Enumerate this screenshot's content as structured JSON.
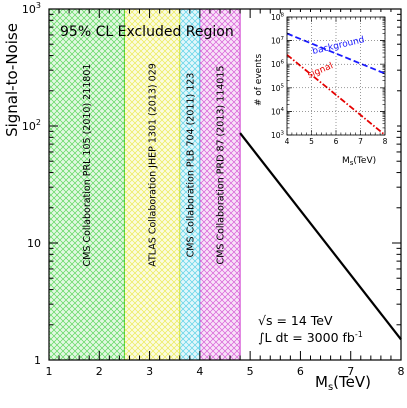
{
  "chart_data": [
    {
      "type": "line",
      "xlabel": "M",
      "xlabel_sub": "s",
      "xlabel_unit": "(TeV)",
      "ylabel": "Signal-to-Noise",
      "xlim": [
        1,
        8
      ],
      "ylim": [
        1,
        1000
      ],
      "yscale": "log",
      "x_ticks": [
        "1",
        "2",
        "3",
        "4",
        "5",
        "6",
        "7",
        "8"
      ],
      "y_ticks": [
        {
          "base": "1",
          "exp": ""
        },
        {
          "base": "10",
          "exp": ""
        },
        {
          "base": "10",
          "exp": "2"
        },
        {
          "base": "10",
          "exp": "3"
        }
      ],
      "region_title": "95% CL Excluded Region",
      "excluded_bands": [
        {
          "from": 1.0,
          "to": 2.5,
          "color": "#33cc33",
          "label": "CMS Collaboration PRL 105 (2010) 211801"
        },
        {
          "from": 2.5,
          "to": 3.6,
          "color": "#e5e52a",
          "label": "ATLAS Collaboration JHEP 1301 (2013) 029"
        },
        {
          "from": 3.6,
          "to": 4.0,
          "color": "#33c8e0",
          "label": "CMS Collaboration PLB 704 (2011) 123"
        },
        {
          "from": 4.0,
          "to": 4.8,
          "color": "#cc33cc",
          "label": "CMS Collaboration PRD 87 (2013) 114015"
        }
      ],
      "series": [
        {
          "color": "#000000",
          "x": [
            4.8,
            8.0
          ],
          "y": [
            87,
            1.5
          ]
        }
      ],
      "annotations": [
        "√s = 14 TeV",
        "∫L dt = 3000 fb"
      ],
      "lumi_exp": "-1"
    },
    {
      "type": "line",
      "xlabel": "M",
      "xlabel_sub": "s",
      "xlabel_unit": "(TeV)",
      "ylabel": "# of events",
      "xlim": [
        4,
        8
      ],
      "ylim": [
        1000,
        100000000
      ],
      "yscale": "log",
      "x_ticks": [
        "4",
        "5",
        "6",
        "7",
        "8"
      ],
      "y_ticks": [
        {
          "base": "10",
          "exp": "3"
        },
        {
          "base": "10",
          "exp": "4"
        },
        {
          "base": "10",
          "exp": "5"
        },
        {
          "base": "10",
          "exp": "6"
        },
        {
          "base": "10",
          "exp": "7"
        },
        {
          "base": "10",
          "exp": "8"
        }
      ],
      "series": [
        {
          "name": "background",
          "color": "#1a1aff",
          "style": "dashed",
          "x": [
            4,
            8
          ],
          "y": [
            20000000,
            400000
          ]
        },
        {
          "name": "signal",
          "color": "#e60000",
          "style": "dashdot",
          "x": [
            4,
            8
          ],
          "y": [
            2500000,
            1000
          ]
        }
      ]
    }
  ]
}
